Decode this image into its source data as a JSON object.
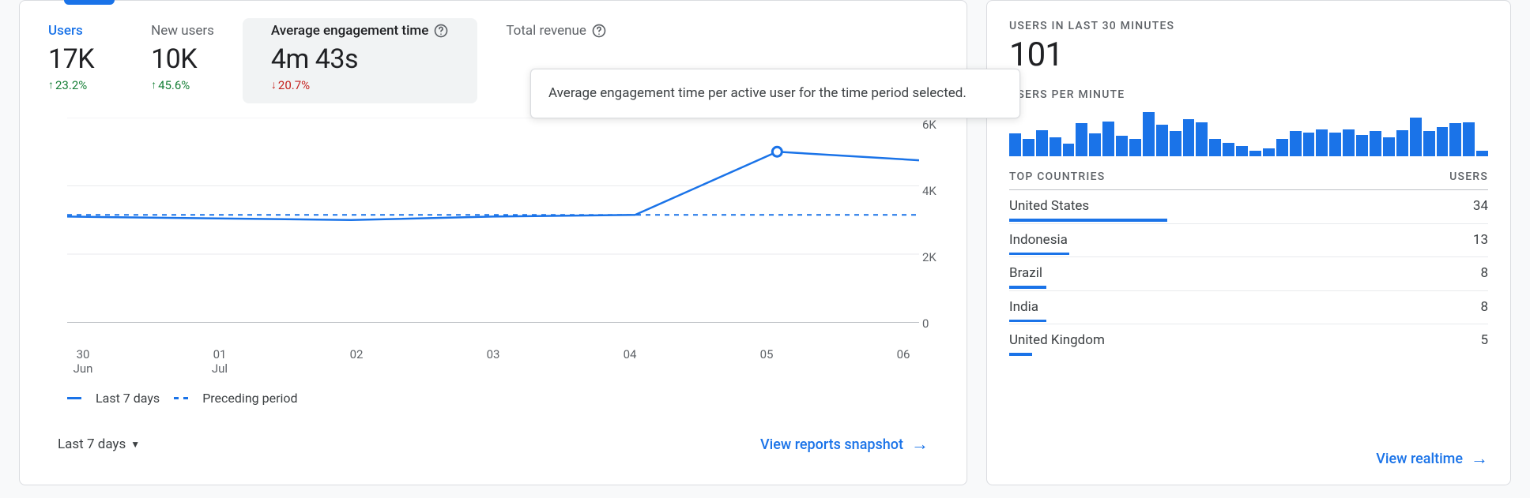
{
  "colors": {
    "primary": "#1a73e8",
    "text": "#202124",
    "muted": "#5f6368",
    "border": "#dadce0",
    "grid": "#e8eaed",
    "up": "#188038",
    "down": "#c5221f",
    "card_bg": "#ffffff",
    "page_bg": "#f8f9fa",
    "active_metric_bg": "#f1f3f4"
  },
  "left": {
    "metrics": [
      {
        "key": "users",
        "label": "Users",
        "value": "17K",
        "delta": "23.2%",
        "direction": "up",
        "state": "highlighted",
        "help": false
      },
      {
        "key": "new_users",
        "label": "New users",
        "value": "10K",
        "delta": "45.6%",
        "direction": "up",
        "state": "default",
        "help": false
      },
      {
        "key": "avg_engage",
        "label": "Average engagement time",
        "value": "4m 43s",
        "delta": "20.7%",
        "direction": "down",
        "state": "active",
        "help": true
      },
      {
        "key": "revenue",
        "label": "Total revenue",
        "value": "",
        "delta": "",
        "direction": "",
        "state": "default",
        "help": true
      }
    ],
    "tooltip": "Average engagement time per active user for the time period selected.",
    "chart": {
      "type": "line",
      "x_categories": [
        "30\nJun",
        "01\nJul",
        "02",
        "03",
        "04",
        "05",
        "06"
      ],
      "y_ticks": [
        "6K",
        "4K",
        "2K",
        "0"
      ],
      "ylim": [
        0,
        6000
      ],
      "series": [
        {
          "name": "Last 7 days",
          "style": "solid",
          "color": "#1a73e8",
          "width": 2.5,
          "values": [
            3100,
            3050,
            3000,
            3100,
            3150,
            5000,
            4750
          ],
          "marker_index": 5
        },
        {
          "name": "Preceding period",
          "style": "dashed",
          "color": "#1a73e8",
          "width": 2,
          "values": [
            3150,
            3150,
            3150,
            3150,
            3150,
            3150,
            3150
          ]
        }
      ],
      "grid_color": "#e8eaed",
      "axis_color": "#bdc1c6",
      "background_color": "#ffffff"
    },
    "legend": {
      "solid": "Last 7 days",
      "dashed": "Preceding period"
    },
    "range_label": "Last 7 days",
    "cta": "View reports snapshot"
  },
  "right": {
    "heading1": "USERS IN LAST 30 MINUTES",
    "big_value": "101",
    "heading2": "USERS PER MINUTE",
    "bars": [
      40,
      30,
      46,
      34,
      22,
      58,
      40,
      62,
      36,
      30,
      78,
      56,
      44,
      66,
      60,
      30,
      24,
      18,
      10,
      14,
      30,
      44,
      42,
      48,
      42,
      48,
      38,
      44,
      34,
      46,
      68,
      44,
      52,
      58,
      60,
      10
    ],
    "bar_color": "#1a73e8",
    "table": {
      "header_left": "TOP COUNTRIES",
      "header_right": "USERS",
      "max": 34,
      "rows": [
        {
          "country": "United States",
          "users": 34
        },
        {
          "country": "Indonesia",
          "users": 13
        },
        {
          "country": "Brazil",
          "users": 8
        },
        {
          "country": "India",
          "users": 8
        },
        {
          "country": "United Kingdom",
          "users": 5
        }
      ]
    },
    "cta": "View realtime"
  }
}
